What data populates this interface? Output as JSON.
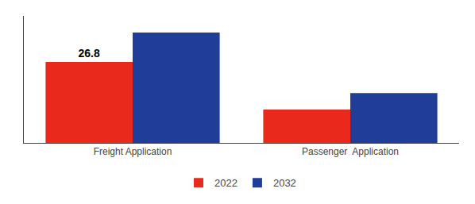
{
  "chart_data": {
    "type": "bar",
    "categories": [
      "Freight Application",
      "Passenger  Application"
    ],
    "series": [
      {
        "name": "2022",
        "color": "#e8291c",
        "values": [
          26.8,
          11.0
        ]
      },
      {
        "name": "2032",
        "color": "#1f3d99",
        "values": [
          36.5,
          16.5
        ]
      }
    ],
    "annotations": [
      {
        "text": "26.8",
        "x": "Freight Application",
        "series": "2022"
      }
    ],
    "ylim": [
      0,
      42
    ],
    "yticks": [],
    "tick_labels": "x",
    "legend": "bottom",
    "grid": false
  }
}
